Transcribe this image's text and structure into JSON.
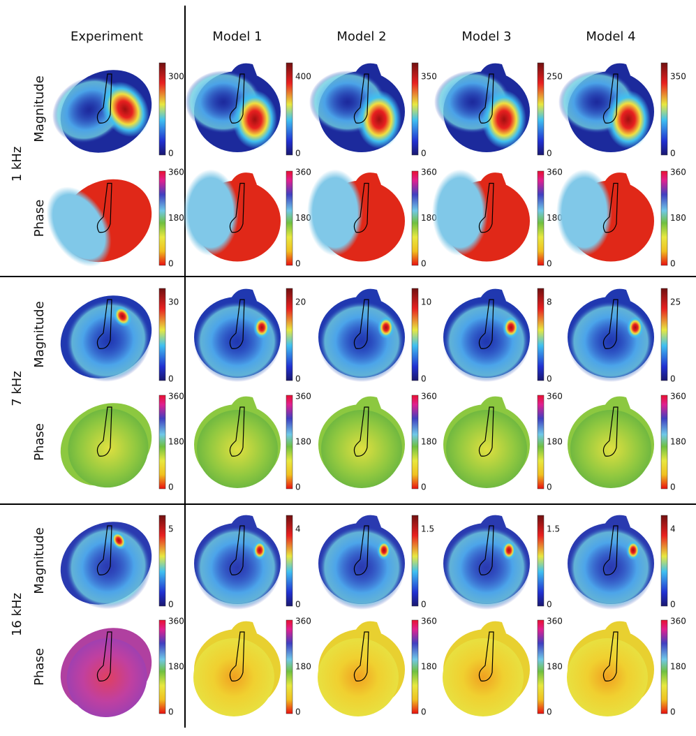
{
  "columns": [
    "Experiment",
    "Model 1",
    "Model 2",
    "Model 3",
    "Model 4"
  ],
  "frequencies": [
    {
      "label": "1 kHz",
      "rows": [
        {
          "label": "Magnitude",
          "colorbars": [
            [
              0,
              300
            ],
            [
              0,
              400
            ],
            [
              0,
              350
            ],
            [
              0,
              250
            ],
            [
              0,
              350
            ]
          ]
        },
        {
          "label": "Phase",
          "colorbars": [
            [
              0,
              180,
              360
            ],
            [
              0,
              180,
              360
            ],
            [
              0,
              180,
              360
            ],
            [
              0,
              180,
              360
            ],
            [
              0,
              180,
              360
            ]
          ]
        }
      ]
    },
    {
      "label": "7 kHz",
      "rows": [
        {
          "label": "Magnitude",
          "colorbars": [
            [
              0,
              30
            ],
            [
              0,
              20
            ],
            [
              0,
              10
            ],
            [
              0,
              8
            ],
            [
              0,
              25
            ]
          ]
        },
        {
          "label": "Phase",
          "colorbars": [
            [
              0,
              180,
              360
            ],
            [
              0,
              180,
              360
            ],
            [
              0,
              180,
              360
            ],
            [
              0,
              180,
              360
            ],
            [
              0,
              180,
              360
            ]
          ]
        }
      ]
    },
    {
      "label": "16 kHz",
      "rows": [
        {
          "label": "Magnitude",
          "colorbars": [
            [
              0,
              5
            ],
            [
              0,
              4
            ],
            [
              0,
              1.5
            ],
            [
              0,
              1.5
            ],
            [
              0,
              4
            ]
          ]
        },
        {
          "label": "Phase",
          "colorbars": [
            [
              0,
              180,
              360
            ],
            [
              0,
              180,
              360
            ],
            [
              0,
              180,
              360
            ],
            [
              0,
              180,
              360
            ],
            [
              0,
              180,
              360
            ]
          ]
        }
      ]
    }
  ]
}
